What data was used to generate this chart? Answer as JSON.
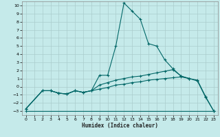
{
  "xlabel": "Humidex (Indice chaleur)",
  "bg_color": "#c5eaea",
  "grid_color": "#aacccc",
  "line_color": "#006666",
  "xlim": [
    -0.5,
    23.5
  ],
  "ylim": [
    -3.5,
    10.5
  ],
  "xticks": [
    0,
    1,
    2,
    3,
    4,
    5,
    6,
    7,
    8,
    9,
    10,
    11,
    12,
    13,
    14,
    15,
    16,
    17,
    18,
    19,
    20,
    21,
    22,
    23
  ],
  "yticks": [
    -3,
    -2,
    -1,
    0,
    1,
    2,
    3,
    4,
    5,
    6,
    7,
    8,
    9,
    10
  ],
  "series": [
    {
      "x": [
        0,
        23
      ],
      "y": [
        -3.0,
        -3.0
      ]
    },
    {
      "x": [
        0,
        2,
        3,
        4,
        5,
        6,
        7,
        8,
        9,
        10,
        11,
        12,
        13,
        14,
        15,
        16,
        17,
        18,
        19,
        20,
        21,
        22,
        23
      ],
      "y": [
        -2.7,
        -0.5,
        -0.5,
        -0.8,
        -0.9,
        -0.5,
        -0.7,
        -0.5,
        -0.3,
        -0.1,
        0.2,
        0.3,
        0.5,
        0.6,
        0.8,
        0.9,
        1.0,
        1.1,
        1.2,
        1.0,
        0.8,
        -1.2,
        -3.0
      ]
    },
    {
      "x": [
        0,
        2,
        3,
        4,
        5,
        6,
        7,
        8,
        9,
        10,
        11,
        12,
        13,
        14,
        15,
        16,
        17,
        18,
        19,
        20
      ],
      "y": [
        -2.7,
        -0.5,
        -0.5,
        -0.8,
        -0.9,
        -0.5,
        -0.7,
        -0.5,
        0.2,
        0.5,
        0.8,
        1.0,
        1.2,
        1.3,
        1.5,
        1.7,
        1.9,
        2.1,
        1.3,
        1.0
      ]
    },
    {
      "x": [
        0,
        2,
        3,
        4,
        5,
        6,
        7,
        8,
        9,
        10,
        11,
        12,
        13,
        14,
        15,
        16,
        17,
        18,
        19,
        20,
        21,
        22,
        23
      ],
      "y": [
        -2.7,
        -0.5,
        -0.5,
        -0.8,
        -0.9,
        -0.5,
        -0.7,
        -0.5,
        1.4,
        1.4,
        5.0,
        10.3,
        9.3,
        8.3,
        5.3,
        5.0,
        3.3,
        2.2,
        1.3,
        1.0,
        0.7,
        -1.3,
        -3.0
      ]
    }
  ]
}
